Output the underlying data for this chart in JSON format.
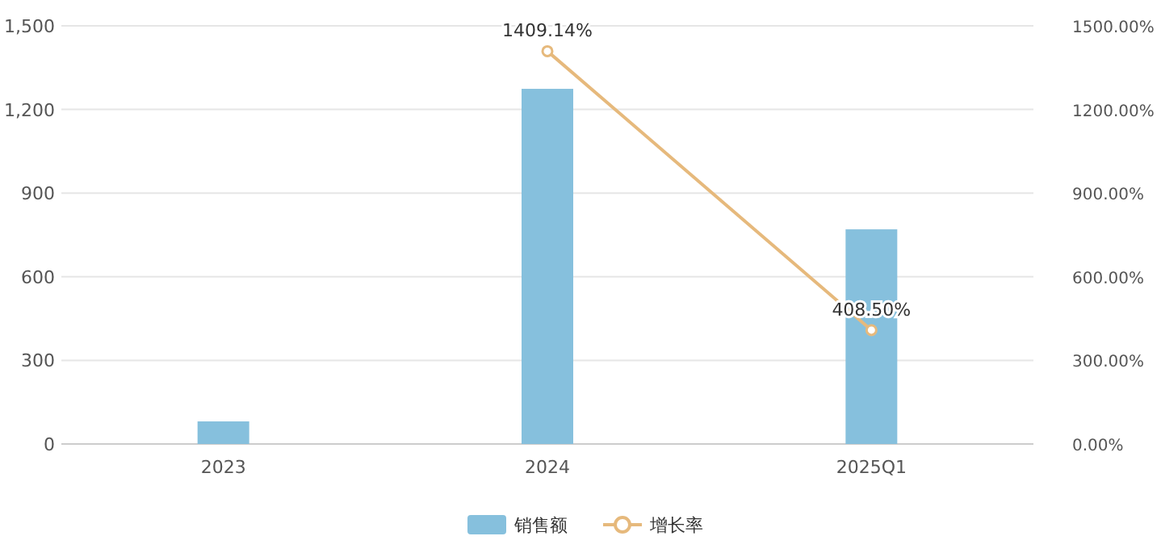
{
  "chart_data": {
    "type": "bar",
    "categories": [
      "2023",
      "2024",
      "2025Q1"
    ],
    "series": [
      {
        "name": "销售额",
        "color": "#86c0dd",
        "values": [
          81,
          1274,
          770
        ]
      },
      {
        "name": "增长率",
        "type": "line",
        "axis": "y2",
        "color": "#e6b97c",
        "marker": "circle",
        "values": [
          null,
          1409.14,
          408.5
        ],
        "value_labels": [
          null,
          "1409.14%",
          "408.50%"
        ]
      }
    ],
    "ylim": [
      0,
      1500
    ],
    "yticks": [
      {
        "value": 0,
        "label": "0"
      },
      {
        "value": 300,
        "label": "300"
      },
      {
        "value": 600,
        "label": "600"
      },
      {
        "value": 900,
        "label": "900"
      },
      {
        "value": 1200,
        "label": "1,200"
      },
      {
        "value": 1500,
        "label": "1,500"
      }
    ],
    "y2lim": [
      0,
      1500
    ],
    "y2ticks": [
      {
        "value": 0,
        "label": "0.00%"
      },
      {
        "value": 300,
        "label": "300.00%"
      },
      {
        "value": 600,
        "label": "600.00%"
      },
      {
        "value": 900,
        "label": "900.00%"
      },
      {
        "value": 1200,
        "label": "1200.00%"
      },
      {
        "value": 1500,
        "label": "1500.00%"
      }
    ],
    "grid": "y",
    "legend": "bottom"
  }
}
